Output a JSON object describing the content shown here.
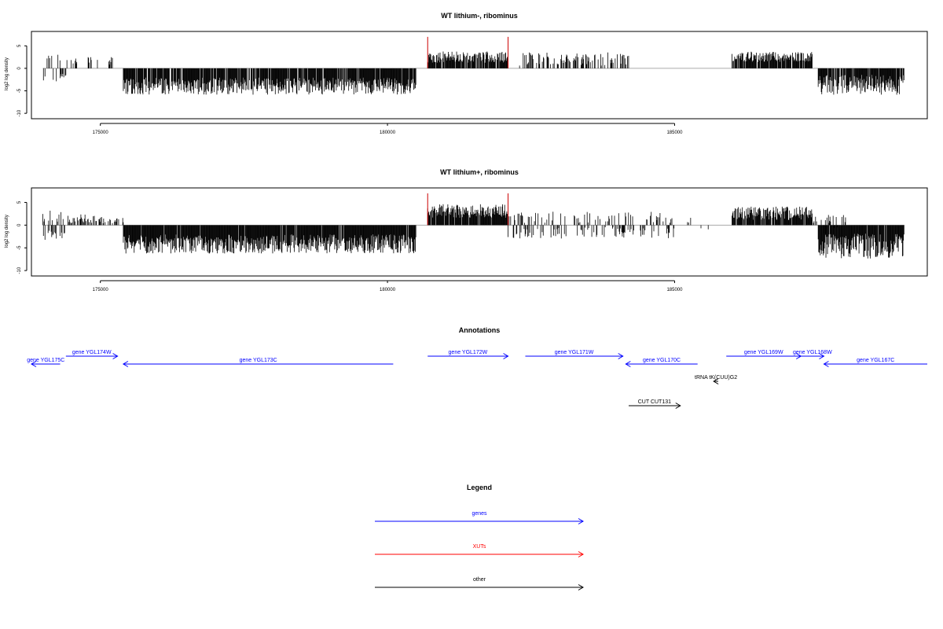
{
  "chart_data": [
    {
      "type": "bar",
      "title": "WT lithium-, ribominus",
      "ylabel": "log2 log density",
      "xlim": [
        173800,
        189400
      ],
      "ylim": [
        -10.5,
        7.5
      ],
      "xticks": [
        175000,
        180000,
        185000
      ],
      "yticks": [
        5,
        0,
        -5,
        -10
      ],
      "segments": [
        {
          "from": 174000,
          "to": 174300,
          "sign": "mixed",
          "base": 2.0,
          "amp": 1.5,
          "density": 0.25
        },
        {
          "from": 174300,
          "to": 174400,
          "sign": "neg",
          "base": 1.5,
          "amp": 1.0,
          "density": 0.5
        },
        {
          "from": 174400,
          "to": 175400,
          "sign": "pos",
          "base": 1.2,
          "amp": 2.0,
          "density": 0.2
        },
        {
          "from": 175400,
          "to": 180500,
          "sign": "neg",
          "base": 3.2,
          "amp": 3.8,
          "density": 0.9
        },
        {
          "from": 180700,
          "to": 182100,
          "sign": "pos",
          "base": 2.0,
          "amp": 2.5,
          "density": 0.85
        },
        {
          "from": 182300,
          "to": 184200,
          "sign": "pos",
          "base": 1.5,
          "amp": 3.0,
          "density": 0.4
        },
        {
          "from": 186000,
          "to": 187400,
          "sign": "pos",
          "base": 2.0,
          "amp": 2.5,
          "density": 0.85
        },
        {
          "from": 187500,
          "to": 189000,
          "sign": "neg",
          "base": 2.8,
          "amp": 4.5,
          "density": 0.9
        }
      ],
      "red_bars": [
        {
          "x": 180700,
          "y": 7.0
        },
        {
          "x": 182100,
          "y": 7.0
        }
      ]
    },
    {
      "type": "bar",
      "title": "WT lithium+, ribominus",
      "ylabel": "log2 log density",
      "xlim": [
        173800,
        189400
      ],
      "ylim": [
        -10.5,
        7.5
      ],
      "xticks": [
        175000,
        180000,
        185000
      ],
      "yticks": [
        5,
        0,
        -5,
        -10
      ],
      "segments": [
        {
          "from": 174000,
          "to": 174400,
          "sign": "mixed",
          "base": 1.5,
          "amp": 2.5,
          "density": 0.5
        },
        {
          "from": 174400,
          "to": 175400,
          "sign": "pos",
          "base": 1.0,
          "amp": 2.0,
          "density": 0.35
        },
        {
          "from": 175400,
          "to": 180500,
          "sign": "neg",
          "base": 3.3,
          "amp": 4.2,
          "density": 0.95
        },
        {
          "from": 180700,
          "to": 182100,
          "sign": "pos",
          "base": 2.5,
          "amp": 3.0,
          "density": 0.95
        },
        {
          "from": 182100,
          "to": 185000,
          "sign": "mixed",
          "base": 1.2,
          "amp": 2.5,
          "density": 0.45
        },
        {
          "from": 185000,
          "to": 186000,
          "sign": "mixed",
          "base": 0.8,
          "amp": 1.2,
          "density": 0.06
        },
        {
          "from": 186000,
          "to": 187400,
          "sign": "pos",
          "base": 2.0,
          "amp": 3.0,
          "density": 0.9
        },
        {
          "from": 187400,
          "to": 188000,
          "sign": "mixed",
          "base": 1.0,
          "amp": 2.0,
          "density": 0.4
        },
        {
          "from": 187500,
          "to": 189000,
          "sign": "neg",
          "base": 3.5,
          "amp": 5.5,
          "density": 0.95
        }
      ],
      "red_bars": [
        {
          "x": 180700,
          "y": 7.0
        },
        {
          "x": 182100,
          "y": 7.0
        }
      ]
    }
  ],
  "annotations": {
    "title": "Annotations",
    "features": [
      {
        "label": "gene YGL175C",
        "start": 174300,
        "end": 173800,
        "row": 1,
        "color": "#0000ff"
      },
      {
        "label": "gene YGL174W",
        "start": 174400,
        "end": 175300,
        "row": 0,
        "color": "#0000ff"
      },
      {
        "label": "gene YGL173C",
        "start": 180100,
        "end": 175400,
        "row": 1,
        "color": "#0000ff"
      },
      {
        "label": "gene YGL172W",
        "start": 180700,
        "end": 182100,
        "row": 0,
        "color": "#0000ff"
      },
      {
        "label": "gene YGL171W",
        "start": 182400,
        "end": 184100,
        "row": 0,
        "color": "#0000ff"
      },
      {
        "label": "gene YGL170C",
        "start": 185400,
        "end": 184150,
        "row": 1,
        "color": "#0000ff"
      },
      {
        "label": "gene YGL169W",
        "start": 185900,
        "end": 187200,
        "row": 0,
        "color": "#0000ff"
      },
      {
        "label": "gene YGL168W",
        "start": 187200,
        "end": 187600,
        "row": 0,
        "color": "#0000ff"
      },
      {
        "label": "gene YGL167C",
        "start": 189400,
        "end": 187600,
        "row": 1,
        "color": "#0000ff"
      },
      {
        "label": "tRNA tK(CUU)G2",
        "start": 185760,
        "end": 185680,
        "row": 2,
        "color": "#000000"
      },
      {
        "label": "CUT CUT131",
        "start": 184200,
        "end": 185100,
        "row": 3,
        "color": "#000000"
      }
    ]
  },
  "legend": {
    "title": "Legend",
    "items": [
      {
        "label": "genes",
        "color": "#0000ff"
      },
      {
        "label": "XUTs",
        "color": "#ff0000"
      },
      {
        "label": "other",
        "color": "#000000"
      }
    ]
  }
}
